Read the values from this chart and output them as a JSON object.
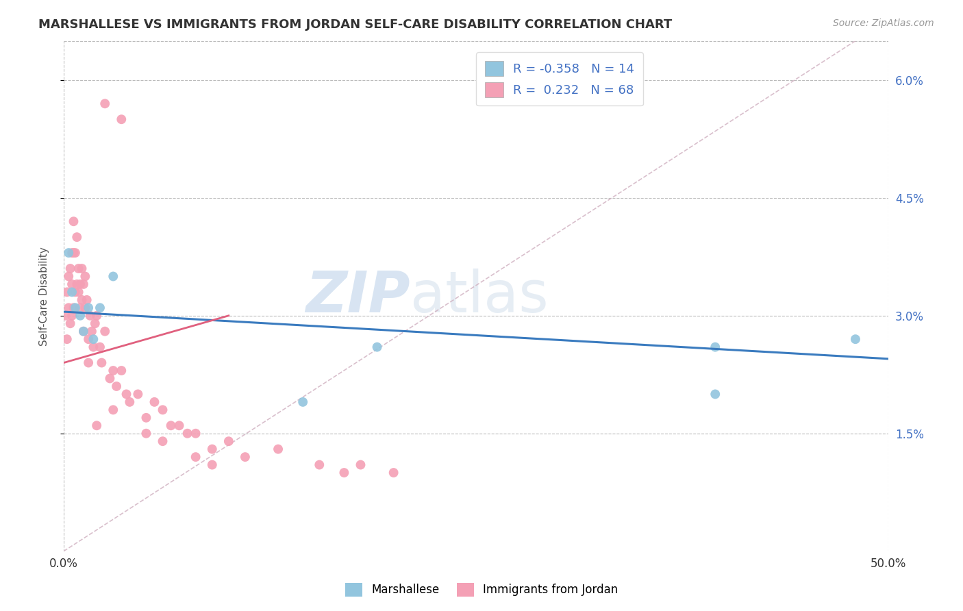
{
  "title": "MARSHALLESE VS IMMIGRANTS FROM JORDAN SELF-CARE DISABILITY CORRELATION CHART",
  "source": "Source: ZipAtlas.com",
  "ylabel": "Self-Care Disability",
  "xlim": [
    0.0,
    0.5
  ],
  "ylim": [
    0.0,
    0.065
  ],
  "yticks": [
    0.015,
    0.03,
    0.045,
    0.06
  ],
  "ytick_labels": [
    "1.5%",
    "3.0%",
    "4.5%",
    "6.0%"
  ],
  "blue_color": "#92c5de",
  "pink_color": "#f4a0b5",
  "blue_line_color": "#3a7bbf",
  "pink_line_color": "#e0607e",
  "ref_line_color": "#d0b0c0",
  "legend_R_blue": "-0.358",
  "legend_N_blue": "14",
  "legend_R_pink": "0.232",
  "legend_N_pink": "68",
  "watermark_zip": "ZIP",
  "watermark_atlas": "atlas",
  "blue_line_x0": 0.0,
  "blue_line_y0": 0.0305,
  "blue_line_x1": 0.5,
  "blue_line_y1": 0.0245,
  "pink_line_x0": 0.0,
  "pink_line_y0": 0.024,
  "pink_line_x1": 0.1,
  "pink_line_y1": 0.03,
  "ref_line_x0": 0.0,
  "ref_line_y0": 0.0,
  "ref_line_x1": 0.48,
  "ref_line_y1": 0.065,
  "blue_points_x": [
    0.003,
    0.005,
    0.007,
    0.01,
    0.012,
    0.015,
    0.018,
    0.022,
    0.03,
    0.145,
    0.19,
    0.395,
    0.395,
    0.48
  ],
  "blue_points_y": [
    0.038,
    0.033,
    0.031,
    0.03,
    0.028,
    0.031,
    0.027,
    0.031,
    0.035,
    0.019,
    0.026,
    0.02,
    0.026,
    0.027
  ],
  "pink_points_x": [
    0.001,
    0.002,
    0.002,
    0.003,
    0.003,
    0.004,
    0.004,
    0.005,
    0.005,
    0.005,
    0.006,
    0.006,
    0.006,
    0.007,
    0.007,
    0.008,
    0.008,
    0.009,
    0.009,
    0.01,
    0.01,
    0.011,
    0.011,
    0.012,
    0.012,
    0.013,
    0.013,
    0.014,
    0.015,
    0.015,
    0.016,
    0.017,
    0.018,
    0.019,
    0.02,
    0.022,
    0.023,
    0.025,
    0.028,
    0.03,
    0.032,
    0.035,
    0.038,
    0.04,
    0.045,
    0.05,
    0.055,
    0.06,
    0.065,
    0.07,
    0.075,
    0.08,
    0.09,
    0.1,
    0.11,
    0.13,
    0.155,
    0.17,
    0.18,
    0.2,
    0.02,
    0.03,
    0.05,
    0.06,
    0.08,
    0.09,
    0.025,
    0.035
  ],
  "pink_points_y": [
    0.03,
    0.027,
    0.033,
    0.031,
    0.035,
    0.029,
    0.036,
    0.03,
    0.034,
    0.038,
    0.031,
    0.038,
    0.042,
    0.033,
    0.038,
    0.034,
    0.04,
    0.033,
    0.036,
    0.031,
    0.034,
    0.032,
    0.036,
    0.034,
    0.028,
    0.031,
    0.035,
    0.032,
    0.027,
    0.024,
    0.03,
    0.028,
    0.026,
    0.029,
    0.03,
    0.026,
    0.024,
    0.028,
    0.022,
    0.023,
    0.021,
    0.023,
    0.02,
    0.019,
    0.02,
    0.017,
    0.019,
    0.018,
    0.016,
    0.016,
    0.015,
    0.015,
    0.013,
    0.014,
    0.012,
    0.013,
    0.011,
    0.01,
    0.011,
    0.01,
    0.016,
    0.018,
    0.015,
    0.014,
    0.012,
    0.011,
    0.057,
    0.055
  ]
}
